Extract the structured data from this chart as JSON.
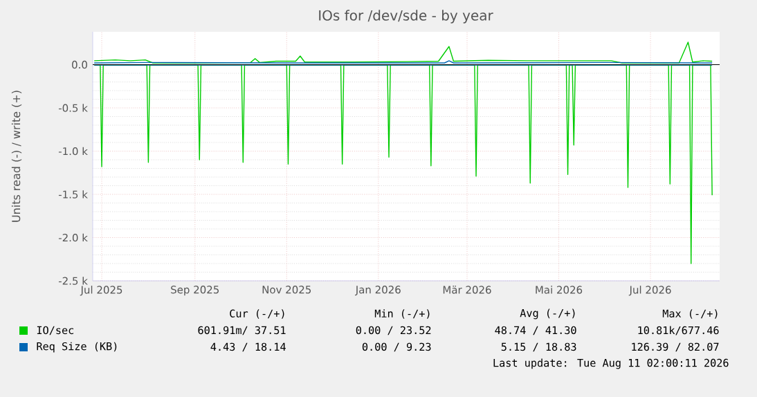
{
  "chart_data": {
    "type": "line",
    "title": "IOs for /dev/sde - by year",
    "ylabel": "Units read (-) / write (+)",
    "xlim": [
      "2025-06-25",
      "2026-08-16"
    ],
    "ylim": [
      -2500,
      380
    ],
    "xticks": [
      {
        "value": "2025-07-01",
        "label": "Jul 2025"
      },
      {
        "value": "2025-09-01",
        "label": "Sep 2025"
      },
      {
        "value": "2025-11-01",
        "label": "Nov 2025"
      },
      {
        "value": "2026-01-01",
        "label": "Jan 2026"
      },
      {
        "value": "2026-03-01",
        "label": "Mär 2026"
      },
      {
        "value": "2026-05-01",
        "label": "Mai 2026"
      },
      {
        "value": "2026-07-01",
        "label": "Jul 2026"
      }
    ],
    "yticks": [
      {
        "value": -2500,
        "label": "-2.5 k"
      },
      {
        "value": -2000,
        "label": "-2.0 k"
      },
      {
        "value": -1500,
        "label": "-1.5 k"
      },
      {
        "value": -1000,
        "label": "-1.0 k"
      },
      {
        "value": -500,
        "label": "-0.5 k"
      },
      {
        "value": 0,
        "label": "0.0"
      }
    ],
    "grid": true,
    "legend": "bottom left",
    "marker": "none",
    "line_style": "solid",
    "series": [
      {
        "name": "IO/sec",
        "color": "#00cc00",
        "x": [
          "2025-06-26",
          "2025-07-10",
          "2025-07-20",
          "2025-07-30",
          "2025-08-04",
          "2025-09-01",
          "2025-10-08",
          "2025-10-11",
          "2025-10-14",
          "2025-10-25",
          "2025-11-07",
          "2025-11-10",
          "2025-11-13",
          "2025-12-15",
          "2026-01-20",
          "2026-02-10",
          "2026-02-17",
          "2026-02-20",
          "2026-03-15",
          "2026-04-10",
          "2026-05-10",
          "2026-06-05",
          "2026-06-12",
          "2026-07-20",
          "2026-07-26",
          "2026-07-29",
          "2026-08-05",
          "2026-08-11"
        ],
        "values": [
          45,
          55,
          45,
          55,
          20,
          20,
          25,
          70,
          25,
          40,
          40,
          100,
          30,
          30,
          35,
          40,
          210,
          40,
          50,
          45,
          45,
          45,
          20,
          20,
          260,
          30,
          45,
          40
        ]
      },
      {
        "color": "#00cc00",
        "x": [
          "2025-06-26",
          "2025-06-30",
          "2025-07-01",
          "2025-07-02",
          "2025-07-31",
          "2025-08-01",
          "2025-08-02",
          "2025-09-03",
          "2025-09-04",
          "2025-09-05",
          "2025-10-02",
          "2025-10-03",
          "2025-10-04",
          "2025-11-01",
          "2025-11-02",
          "2025-11-03",
          "2025-12-07",
          "2025-12-08",
          "2025-12-09",
          "2026-01-07",
          "2026-01-08",
          "2026-01-09",
          "2026-02-04",
          "2026-02-05",
          "2026-02-06",
          "2026-03-06",
          "2026-03-07",
          "2026-03-08",
          "2026-04-11",
          "2026-04-12",
          "2026-04-13",
          "2026-05-06",
          "2026-05-07",
          "2026-05-08",
          "2026-05-10",
          "2026-05-11",
          "2026-05-12",
          "2026-06-15",
          "2026-06-16",
          "2026-06-17",
          "2026-07-13",
          "2026-07-14",
          "2026-07-15",
          "2026-07-27",
          "2026-07-28",
          "2026-07-29",
          "2026-08-10",
          "2026-08-11"
        ],
        "values": [
          -5,
          -5,
          -1180,
          -5,
          -5,
          -1130,
          -5,
          -5,
          -1100,
          -5,
          -5,
          -1130,
          -5,
          -5,
          -1150,
          -5,
          -5,
          -1150,
          -5,
          -5,
          -1070,
          -5,
          -5,
          -1170,
          -5,
          -5,
          -1290,
          -5,
          -5,
          -1370,
          -5,
          -5,
          -1270,
          -5,
          -5,
          -930,
          -5,
          -5,
          -1420,
          -5,
          -5,
          -1380,
          -5,
          -5,
          -2300,
          -5,
          -5,
          -1510
        ]
      },
      {
        "name": "Req Size (KB)",
        "color": "#0066b3",
        "x": [
          "2025-06-26",
          "2025-08-01",
          "2025-11-01",
          "2026-02-14",
          "2026-02-17",
          "2026-02-20",
          "2026-06-01",
          "2026-08-11"
        ],
        "values": [
          20,
          25,
          20,
          20,
          45,
          20,
          25,
          20
        ]
      },
      {
        "color": "#0066b3",
        "x": [
          "2025-06-26",
          "2026-08-11"
        ],
        "values": [
          -5,
          -5
        ]
      }
    ],
    "annotations": [
      "Cur (-/+)",
      "Min (-/+)",
      "Avg (-/+)",
      "Max (-/+)",
      "601.91m/ 37.51",
      "0.00 / 23.52",
      "48.74 / 41.30",
      "10.81k/677.46",
      "4.43 / 18.14",
      "0.00 /  9.23",
      "5.15 / 18.83",
      "126.39 / 82.07",
      "Last update: Tue Aug 11 02:00:11 2026"
    ]
  }
}
